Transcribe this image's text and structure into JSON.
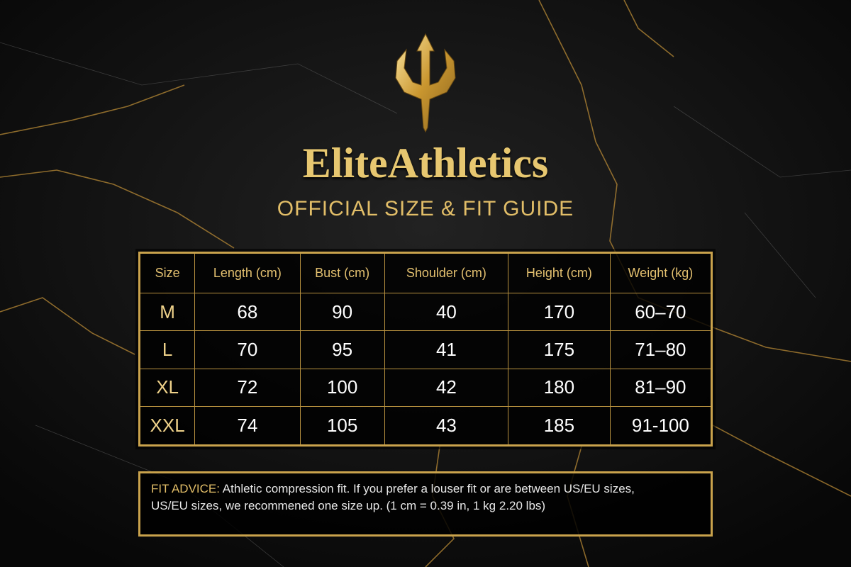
{
  "header": {
    "brand": "EliteAthletics",
    "subtitle": "OFFICIAL SIZE & FIT GUIDE"
  },
  "table": {
    "columns": [
      "Size",
      "Length (cm)",
      "Bust (cm)",
      "Shoulder (cm)",
      "Height (cm)",
      "Weight (kg)"
    ],
    "rows": [
      [
        "M",
        68,
        90,
        40,
        170,
        "60–70"
      ],
      [
        "L",
        70,
        95,
        41,
        175,
        "71–80"
      ],
      [
        "XL",
        72,
        100,
        42,
        180,
        "81–90"
      ],
      [
        "XXL",
        74,
        105,
        43,
        185,
        "91-100"
      ]
    ]
  },
  "advice": {
    "label": "FIT ADVICE:",
    "lines": [
      "Athletic compression fit. If you prefer a louser fit or are between US/EU sizes,",
      "US/EU sizes, we recommened one size up. (1 cm = 0.39 in, 1 kg 2.20 lbs)"
    ]
  }
}
